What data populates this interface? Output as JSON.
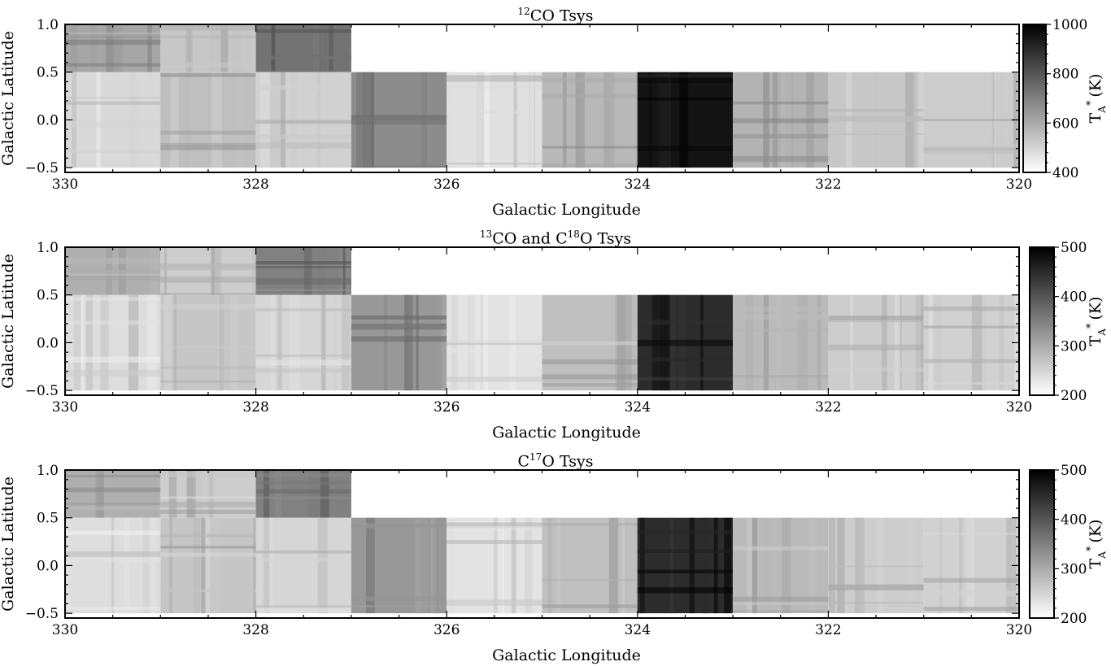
{
  "chart_data": [
    {
      "type": "heatmap",
      "title_sup": "12",
      "title_main": "CO Tsys",
      "xlabel": "Galactic Longitude",
      "ylabel": "Galactic Latitude",
      "xlim": [
        330,
        320
      ],
      "ylim": [
        -0.55,
        1.0
      ],
      "x_ticks": [
        330,
        328,
        326,
        324,
        322,
        320
      ],
      "x_tick_labels": [
        "330",
        "328",
        "326",
        "324",
        "322",
        "320"
      ],
      "y_ticks": [
        1.0,
        0.5,
        0.0,
        -0.5
      ],
      "y_tick_labels": [
        "1.0",
        "0.5",
        "0.0",
        "−0.5"
      ],
      "colorbar": {
        "label_main": "T",
        "label_sub": "A",
        "label_sup": "*",
        "label_unit": "(K)",
        "range": [
          400,
          1000
        ],
        "ticks": [
          400,
          600,
          800,
          1000
        ],
        "tick_labels": [
          "400",
          "600",
          "800",
          "1000"
        ]
      }
    },
    {
      "type": "heatmap",
      "title_sup": "13",
      "title_main": "CO and C",
      "title_sup2": "18",
      "title_main2": "O Tsys",
      "xlabel": "Galactic Longitude",
      "ylabel": "Galactic Latitude",
      "xlim": [
        330,
        320
      ],
      "ylim": [
        -0.55,
        1.0
      ],
      "x_ticks": [
        330,
        328,
        326,
        324,
        322,
        320
      ],
      "x_tick_labels": [
        "330",
        "328",
        "326",
        "324",
        "322",
        "320"
      ],
      "y_ticks": [
        1.0,
        0.5,
        0.0,
        -0.5
      ],
      "y_tick_labels": [
        "1.0",
        "0.5",
        "0.0",
        "−0.5"
      ],
      "colorbar": {
        "label_main": "T",
        "label_sub": "A",
        "label_sup": "*",
        "label_unit": "(K)",
        "range": [
          200,
          500
        ],
        "ticks": [
          200,
          300,
          400,
          500
        ],
        "tick_labels": [
          "200",
          "300",
          "400",
          "500"
        ]
      }
    },
    {
      "type": "heatmap",
      "title_main": "C",
      "title_sup": "17",
      "title_main2": "O Tsys",
      "xlabel": "Galactic Longitude",
      "ylabel": "Galactic Latitude",
      "xlim": [
        330,
        320
      ],
      "ylim": [
        -0.55,
        1.0
      ],
      "x_ticks": [
        330,
        328,
        326,
        324,
        322,
        320
      ],
      "x_tick_labels": [
        "330",
        "328",
        "326",
        "324",
        "322",
        "320"
      ],
      "y_ticks": [
        1.0,
        0.5,
        0.0,
        -0.5
      ],
      "y_tick_labels": [
        "1.0",
        "0.5",
        "0.0",
        "−0.5"
      ],
      "colorbar": {
        "label_main": "T",
        "label_sub": "A",
        "label_sup": "*",
        "label_unit": "(K)",
        "range": [
          200,
          500
        ],
        "ticks": [
          200,
          300,
          400,
          500
        ],
        "tick_labels": [
          "200",
          "300",
          "400",
          "500"
        ]
      }
    }
  ],
  "tiles": [
    {
      "l": [
        330,
        329
      ],
      "b": [
        0.5,
        1.0
      ],
      "v": 0.35
    },
    {
      "l": [
        329,
        328
      ],
      "b": [
        0.5,
        1.0
      ],
      "v": 0.22
    },
    {
      "l": [
        328,
        327
      ],
      "b": [
        0.5,
        1.0
      ],
      "v": 0.55
    },
    {
      "l": [
        330,
        329
      ],
      "b": [
        -0.5,
        0.5
      ],
      "v": 0.15
    },
    {
      "l": [
        329,
        328
      ],
      "b": [
        -0.5,
        0.5
      ],
      "v": 0.25
    },
    {
      "l": [
        328,
        327
      ],
      "b": [
        -0.5,
        0.5
      ],
      "v": 0.18
    },
    {
      "l": [
        327,
        326
      ],
      "b": [
        -0.5,
        0.5
      ],
      "v": 0.45
    },
    {
      "l": [
        326,
        325
      ],
      "b": [
        -0.5,
        0.5
      ],
      "v": 0.12
    },
    {
      "l": [
        325,
        324
      ],
      "b": [
        -0.5,
        0.5
      ],
      "v": 0.28
    },
    {
      "l": [
        324,
        323
      ],
      "b": [
        -0.5,
        0.5
      ],
      "v": 0.92
    },
    {
      "l": [
        323,
        322
      ],
      "b": [
        -0.5,
        0.5
      ],
      "v": 0.3
    },
    {
      "l": [
        322,
        321
      ],
      "b": [
        -0.5,
        0.5
      ],
      "v": 0.22
    },
    {
      "l": [
        321,
        320
      ],
      "b": [
        -0.5,
        0.5
      ],
      "v": 0.2
    }
  ]
}
